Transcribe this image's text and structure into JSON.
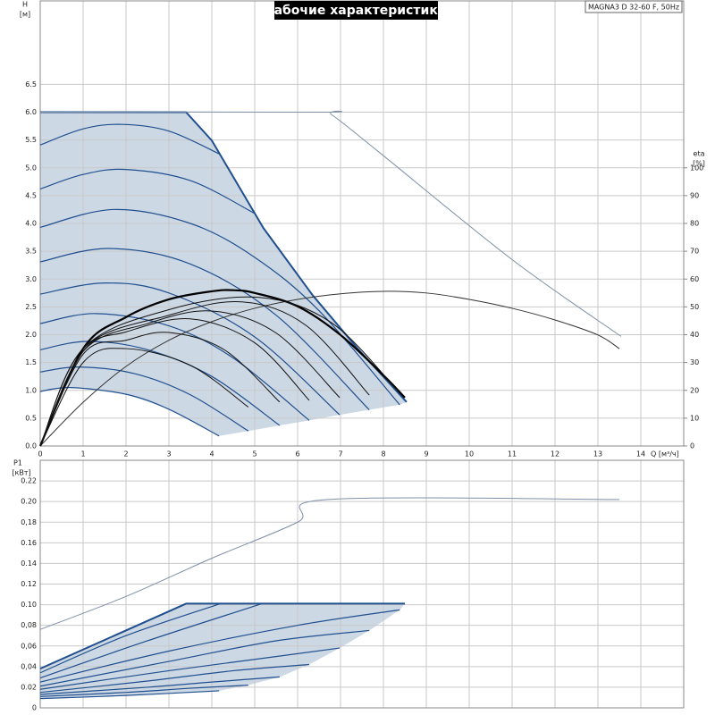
{
  "chart_data": [
    {
      "type": "line",
      "title": "Рабочие характеристики",
      "subtitle": "MAGNA3 D 32-60 F, 50Hz",
      "ylabel": "H",
      "yunit": "[м]",
      "y2label": "eta",
      "y2unit": "[%]",
      "xlabel": "Q [м³/ч]",
      "xlim": [
        0,
        15
      ],
      "ylim": [
        0,
        8
      ],
      "y2lim": [
        0,
        160
      ],
      "xticks": [
        0,
        1,
        2,
        3,
        4,
        5,
        6,
        7,
        8,
        9,
        10,
        11,
        12,
        13,
        14
      ],
      "yticks": [
        {
          "value": 0,
          "label": "0.0"
        },
        0.5,
        {
          "value": 1,
          "label": "1.0"
        },
        1.5,
        {
          "value": 2,
          "label": "2.0"
        },
        2.5,
        {
          "value": 3,
          "label": "3.0"
        },
        3.5,
        {
          "value": 4,
          "label": "4.0"
        },
        4.5,
        {
          "value": 5,
          "label": "5.0"
        },
        5.5,
        {
          "value": 6,
          "label": "6.0"
        },
        6.5
      ],
      "y2ticks": [
        0,
        10,
        20,
        30,
        40,
        50,
        60,
        70,
        80,
        90,
        100
      ],
      "grid": true,
      "fill": "#cdd8e5",
      "series": [
        {
          "color": "#1f4f8f",
          "linewidth": 2,
          "curve": "linear",
          "x": [
            0,
            3.4,
            4,
            5.2,
            6.35,
            7.4,
            8.54
          ],
          "values": [
            6,
            6,
            5.49,
            3.92,
            2.71,
            1.75,
            0.79
          ]
        },
        {
          "color": "#1f4f8f",
          "linewidth": 1.2,
          "x": [
            0,
            1,
            1.9,
            3,
            4.2
          ],
          "values": [
            5.41,
            5.7,
            5.78,
            5.66,
            5.24
          ]
        },
        {
          "color": "#1f4f8f",
          "linewidth": 1.2,
          "x": [
            0,
            1,
            2,
            3.5,
            5
          ],
          "values": [
            4.62,
            4.88,
            4.97,
            4.77,
            4.18
          ]
        },
        {
          "color": "#1f4f8f",
          "linewidth": 1.2,
          "x": [
            0,
            1.7,
            3.5,
            5,
            6.5,
            8.38
          ],
          "values": [
            3.93,
            4.25,
            4,
            3.39,
            2.43,
            0.74
          ]
        },
        {
          "color": "#1f4f8f",
          "linewidth": 1.2,
          "x": [
            0,
            1.6,
            3.5,
            5.5,
            7.67
          ],
          "values": [
            3.31,
            3.55,
            3.27,
            2.35,
            0.65
          ]
        },
        {
          "color": "#1f4f8f",
          "linewidth": 1.2,
          "x": [
            0,
            1.5,
            3,
            5,
            6.98
          ],
          "values": [
            2.73,
            2.93,
            2.75,
            1.96,
            0.56
          ]
        },
        {
          "color": "#1f4f8f",
          "linewidth": 1.2,
          "x": [
            0,
            1.3,
            3,
            4.5,
            6.27
          ],
          "values": [
            2.2,
            2.38,
            2.16,
            1.58,
            0.46
          ]
        },
        {
          "color": "#1f4f8f",
          "linewidth": 1.2,
          "x": [
            0,
            1.1,
            2.5,
            4,
            5.58
          ],
          "values": [
            1.73,
            1.88,
            1.73,
            1.25,
            0.37
          ]
        },
        {
          "color": "#1f4f8f",
          "linewidth": 1.2,
          "x": [
            0,
            0.9,
            2.2,
            3.5,
            4.85
          ],
          "values": [
            1.33,
            1.42,
            1.3,
            0.92,
            0.27
          ]
        },
        {
          "color": "#1f4f8f",
          "linewidth": 1.2,
          "x": [
            0,
            0.7,
            2,
            3,
            4.17
          ],
          "values": [
            0.98,
            1.05,
            0.93,
            0.66,
            0.18
          ]
        },
        {
          "color": "#7f8fa8",
          "linewidth": 1,
          "x": [
            0,
            6.5,
            6.8,
            7.9,
            11,
            13.54
          ],
          "values": [
            6,
            6,
            5.95,
            5.28,
            3.35,
            1.97
          ]
        },
        {
          "color": "#333333",
          "linewidth": 1,
          "axis": "y2",
          "x": [
            0,
            1,
            2,
            3,
            4,
            5,
            6,
            7,
            8,
            9,
            10,
            11,
            12,
            13,
            13.5
          ],
          "values": [
            0,
            15.7,
            28.6,
            38,
            44.7,
            49.5,
            52.7,
            54.7,
            55.6,
            55,
            52.7,
            49.5,
            45.3,
            39.9,
            35
          ]
        },
        {
          "color": "#000000",
          "linewidth": 2.2,
          "axis": "y2",
          "x": [
            0,
            1,
            2,
            3,
            4,
            4.5,
            5,
            6,
            7,
            8,
            8.5
          ],
          "values": [
            0,
            35,
            46.3,
            52.7,
            55.6,
            56,
            55,
            50.2,
            39.9,
            25.4,
            17.4
          ]
        },
        {
          "color": "#111111",
          "linewidth": 1,
          "axis": "y2",
          "x": [
            0,
            1,
            2,
            3.5,
            4.85
          ],
          "values": [
            0,
            30,
            35,
            29,
            14
          ]
        },
        {
          "color": "#111111",
          "linewidth": 1,
          "axis": "y2",
          "x": [
            0,
            1,
            2,
            3,
            4.3,
            5.58
          ],
          "values": [
            0,
            33,
            38,
            40.8,
            34.5,
            15.8
          ]
        },
        {
          "color": "#111111",
          "linewidth": 1,
          "axis": "y2",
          "x": [
            0,
            1,
            2,
            3.5,
            5,
            6.27
          ],
          "values": [
            0,
            34,
            41,
            45.7,
            37.1,
            16.4
          ]
        },
        {
          "color": "#111111",
          "linewidth": 1,
          "axis": "y2",
          "x": [
            0,
            1,
            2.5,
            4,
            5.5,
            6.98
          ],
          "values": [
            0,
            34,
            44,
            48.5,
            40.6,
            17.4
          ]
        },
        {
          "color": "#111111",
          "linewidth": 1,
          "axis": "y2",
          "x": [
            0,
            1,
            3,
            4.7,
            6.2,
            7.67
          ],
          "values": [
            0,
            35,
            47,
            51.8,
            43.3,
            18.3
          ]
        },
        {
          "color": "#111111",
          "linewidth": 1,
          "axis": "y2",
          "x": [
            0,
            1,
            3,
            5.1,
            6.8,
            8.38
          ],
          "values": [
            0,
            35,
            49,
            53.4,
            44.2,
            19
          ]
        }
      ]
    },
    {
      "type": "line",
      "ylabel": "P1",
      "yunit": "[кВт]",
      "xlim": [
        0,
        15
      ],
      "ylim": [
        0,
        0.24
      ],
      "yticks": [
        0,
        0.02,
        {
          "value": 0.04,
          "label": "0,04"
        },
        {
          "value": 0.06,
          "label": "0,06"
        },
        {
          "value": 0.08,
          "label": "0,08"
        },
        {
          "value": 0.1,
          "label": "0.10"
        },
        0.12,
        0.14,
        0.16,
        {
          "value": 0.18,
          "label": "0,18"
        },
        {
          "value": 0.2,
          "label": "0.20"
        },
        0.22
      ],
      "grid": true,
      "fill": "#cdd8e5",
      "series": [
        {
          "color": "#1f4f8f",
          "linewidth": 2,
          "curve": "linear",
          "x": [
            0,
            3.4,
            8.5
          ],
          "values": [
            0.038,
            0.101,
            0.101
          ]
        },
        {
          "color": "#1f4f8f",
          "linewidth": 1.2,
          "x": [
            0,
            2,
            4.2
          ],
          "values": [
            0.034,
            0.07,
            0.101
          ]
        },
        {
          "color": "#1f4f8f",
          "linewidth": 1.2,
          "x": [
            0,
            2.5,
            5.17
          ],
          "values": [
            0.029,
            0.065,
            0.101
          ]
        },
        {
          "color": "#1f4f8f",
          "linewidth": 1.2,
          "x": [
            0,
            3,
            6,
            8.38
          ],
          "values": [
            0.025,
            0.055,
            0.08,
            0.095
          ]
        },
        {
          "color": "#1f4f8f",
          "linewidth": 1.2,
          "x": [
            0,
            3,
            5.5,
            7.67
          ],
          "values": [
            0.021,
            0.045,
            0.065,
            0.075
          ]
        },
        {
          "color": "#1f4f8f",
          "linewidth": 1.2,
          "x": [
            0,
            3,
            5,
            6.98
          ],
          "values": [
            0.018,
            0.036,
            0.047,
            0.058
          ]
        },
        {
          "color": "#1f4f8f",
          "linewidth": 1.2,
          "x": [
            0,
            2.5,
            4.5,
            6.27
          ],
          "values": [
            0.015,
            0.026,
            0.036,
            0.042
          ]
        },
        {
          "color": "#1f4f8f",
          "linewidth": 1.2,
          "x": [
            0,
            2.5,
            4,
            5.58
          ],
          "values": [
            0.013,
            0.02,
            0.025,
            0.03
          ]
        },
        {
          "color": "#1f4f8f",
          "linewidth": 1.2,
          "x": [
            0,
            2,
            3.5,
            4.85
          ],
          "values": [
            0.011,
            0.015,
            0.019,
            0.022
          ]
        },
        {
          "color": "#1f4f8f",
          "linewidth": 1.2,
          "x": [
            0,
            2,
            4.17
          ],
          "values": [
            0.009,
            0.012,
            0.0165
          ]
        },
        {
          "color": "#7f8fa8",
          "linewidth": 1,
          "x": [
            0,
            2,
            4,
            6,
            6.7,
            13.5
          ],
          "values": [
            0.076,
            0.108,
            0.145,
            0.18,
            0.202,
            0.202
          ]
        }
      ]
    }
  ]
}
